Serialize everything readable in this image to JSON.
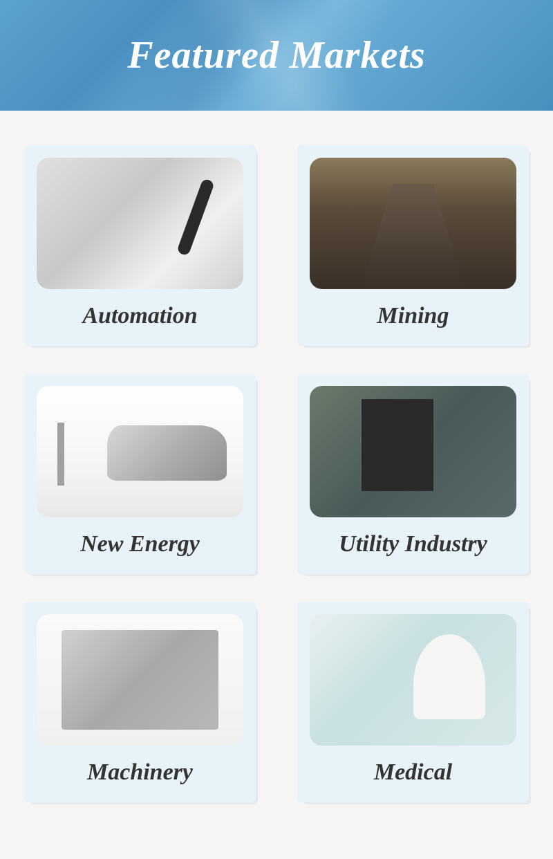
{
  "header": {
    "title": "Featured Markets",
    "background_gradient": [
      "#5ba3d0",
      "#4a8fc0",
      "#6bb0d8",
      "#5aa0cc",
      "#4590be"
    ],
    "title_color": "#ffffff",
    "title_fontsize": 56,
    "title_font_style": "italic",
    "title_font_weight": "bold"
  },
  "layout": {
    "columns": 2,
    "rows": 3,
    "card_background": "#e8f2f9",
    "card_border_radius": 6,
    "image_border_radius": 18,
    "gap_horizontal": 60,
    "gap_vertical": 40,
    "padding": 40
  },
  "label_style": {
    "fontsize": 34,
    "font_style": "italic",
    "font_weight": "bold",
    "color": "#333333",
    "font_family": "Georgia, serif"
  },
  "cards": [
    {
      "id": "automation",
      "label": "Automation",
      "image_description": "robotic-arm-factory",
      "image_palette": [
        "#e0e0e0",
        "#c8c8c8",
        "#2a2a2a"
      ]
    },
    {
      "id": "mining",
      "label": "Mining",
      "image_description": "conveyor-belt-mine",
      "image_palette": [
        "#8a7a5a",
        "#5a4a3a",
        "#3a3028"
      ]
    },
    {
      "id": "new-energy",
      "label": "New Energy",
      "image_description": "electric-car-charging",
      "image_palette": [
        "#ffffff",
        "#d8d8d8",
        "#909090"
      ]
    },
    {
      "id": "utility-industry",
      "label": "Utility Industry",
      "image_description": "industrial-pumps-pipes",
      "image_palette": [
        "#6a7a6a",
        "#4a5a5a",
        "#2a2a2a"
      ]
    },
    {
      "id": "machinery",
      "label": "Machinery",
      "image_description": "cnc-machine",
      "image_palette": [
        "#fafafa",
        "#d0d0d0",
        "#a8a8a8"
      ]
    },
    {
      "id": "medical",
      "label": "Medical",
      "image_description": "hospital-operating-room",
      "image_palette": [
        "#e8f0f0",
        "#c8e0e0",
        "#f5f5f5"
      ]
    }
  ]
}
